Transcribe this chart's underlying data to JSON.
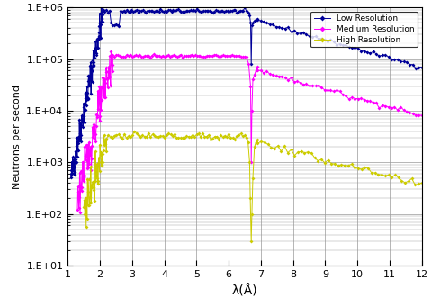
{
  "xlabel": "λ(Å)",
  "ylabel": "Neutrons per second",
  "xlim": [
    1,
    12
  ],
  "ylim_log": [
    10,
    1000000
  ],
  "yticks": [
    10,
    100,
    1000,
    10000,
    100000,
    1000000
  ],
  "ytick_labels": [
    "1.E+01",
    "1.E+02",
    "1.E+03",
    "1.E+04",
    "1.E+05",
    "1.E+06"
  ],
  "xticks": [
    1,
    2,
    3,
    4,
    5,
    6,
    7,
    8,
    9,
    10,
    11,
    12
  ],
  "colors": {
    "low": "#000099",
    "medium": "#FF00FF",
    "high": "#CCCC00"
  },
  "legend_labels": [
    "Low Resolution",
    "Medium Resolution",
    "High Resolution"
  ],
  "background_color": "#FFFFFF",
  "grid_color": "#999999"
}
